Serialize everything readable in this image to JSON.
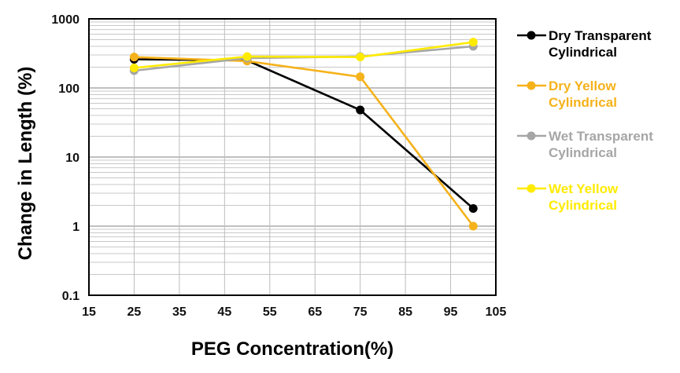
{
  "chart_data": {
    "type": "line",
    "xlabel": "PEG Concentration(%)",
    "ylabel": "Change in Length (%)",
    "x_scale": "linear",
    "y_scale": "log",
    "xlim": [
      15,
      105
    ],
    "ylim": [
      0.1,
      1000
    ],
    "x_ticks": [
      "15",
      "25",
      "35",
      "45",
      "55",
      "65",
      "75",
      "85",
      "95",
      "105"
    ],
    "y_ticks": [
      "0.1",
      "1",
      "10",
      "100",
      "1000"
    ],
    "grid": true,
    "legend_position": "right",
    "x": [
      25,
      50,
      75,
      100
    ],
    "series": [
      {
        "name_lines": [
          "Dry Transparent",
          "Cylindrical"
        ],
        "color": "#000000",
        "values": [
          260,
          250,
          48,
          1.8
        ]
      },
      {
        "name_lines": [
          "Dry Yellow",
          "Cylindrical"
        ],
        "color": "#F5B21B",
        "values": [
          280,
          245,
          145,
          1.0
        ]
      },
      {
        "name_lines": [
          "Wet Transparent",
          "Cylindrical"
        ],
        "color": "#A6A6A6",
        "values": [
          178,
          270,
          285,
          400
        ]
      },
      {
        "name_lines": [
          "Wet Yellow",
          "Cylindrical"
        ],
        "color": "#FFEB00",
        "values": [
          195,
          285,
          280,
          460
        ]
      }
    ]
  }
}
